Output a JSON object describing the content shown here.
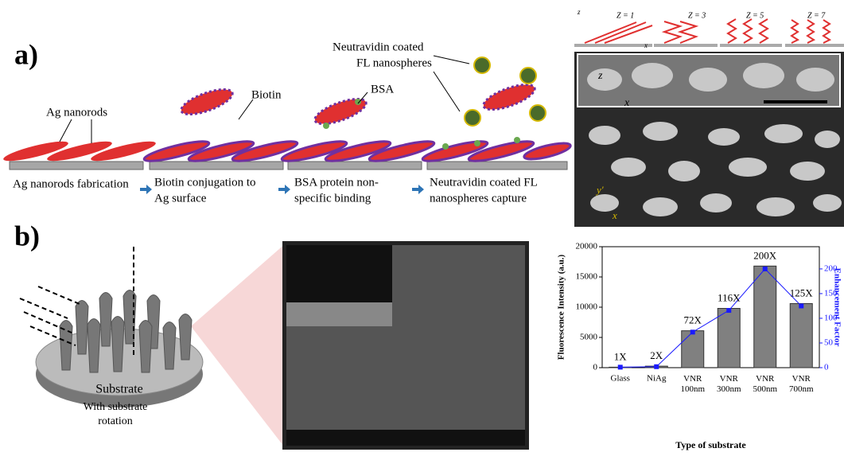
{
  "panel_a": {
    "label": "a)",
    "ag_nanorods": "Ag nanorods",
    "biotin": "Biotin",
    "bsa": "BSA",
    "neutravidin": [
      "Neutravidin coated",
      "FL nanospheres"
    ],
    "steps": [
      [
        "Ag nanorods fabrication"
      ],
      [
        "Biotin conjugation to",
        "Ag surface"
      ],
      [
        "BSA protein non-",
        "specific binding"
      ],
      [
        "Neutravidin coated FL",
        "nanospheres capture"
      ]
    ],
    "z_labels": [
      "Z = 1",
      "Z = 3",
      "Z = 5",
      "Z = 7"
    ],
    "axis_letters": [
      "z",
      "x",
      "z",
      "x",
      "y'",
      "x"
    ]
  },
  "panel_b": {
    "label": "b)",
    "substrate": "Substrate",
    "rotation": [
      "With substrate",
      "rotation"
    ]
  },
  "chart_data": {
    "type": "bar",
    "categories": [
      "Glass",
      "NiAg",
      "VNR 100nm",
      "VNR 300nm",
      "VNR 500nm",
      "VNR 700nm"
    ],
    "x_label": "Type of substrate",
    "y_label": "Fluorescence Intensity (a.u.)",
    "y2_label": "Enhancement Factor",
    "series": [
      {
        "color": "#808080",
        "values": [
          80,
          250,
          6100,
          9800,
          16800,
          10600
        ]
      },
      {
        "color": "#1a1aff",
        "axis": "y2",
        "values": [
          1,
          2,
          72,
          116,
          200,
          125
        ],
        "value_labels": [
          "1X",
          "2X",
          "72X",
          "116X",
          "200X",
          "125X"
        ]
      }
    ],
    "ylim": [
      0,
      20000
    ],
    "yticks": [
      0,
      5000,
      10000,
      15000,
      20000
    ],
    "y2lim": [
      0,
      245
    ],
    "y2ticks": [
      0,
      50,
      100,
      150,
      200
    ]
  }
}
